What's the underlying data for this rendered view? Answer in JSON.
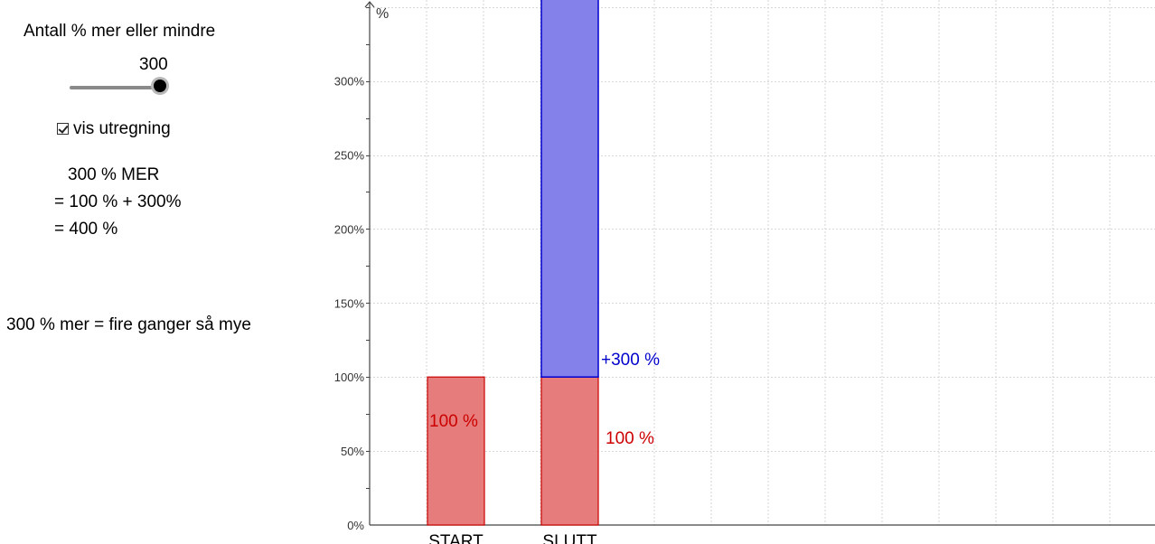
{
  "panel": {
    "slider_title": "Antall % mer eller mindre",
    "slider_value": "300",
    "slider_level": 1.0,
    "checkbox_label": "vis utregning",
    "checkbox_checked": true,
    "calc_line1": "300 % MER",
    "calc_line2": "= 100 % + 300%",
    "calc_line3": "= 400 %",
    "summary": "300 % mer = fire ganger så mye"
  },
  "chart_data": {
    "type": "bar",
    "ylabel": "%",
    "ylim": [
      0,
      350
    ],
    "yticks": [
      0,
      50,
      100,
      150,
      200,
      250,
      300
    ],
    "ytick_labels": [
      "0%",
      "50%",
      "100%",
      "150%",
      "200%",
      "250%",
      "300%"
    ],
    "grid": true,
    "categories": [
      "START",
      "SLUTT"
    ],
    "series": [
      {
        "color": "#e67c7c",
        "stroke": "#cc0000",
        "values": [
          100,
          100
        ]
      },
      {
        "color": "#8482ea",
        "stroke": "#0000cc",
        "values": [
          0,
          300
        ]
      }
    ],
    "annotations": {
      "start_base": "100 %",
      "slutt_base": "100 %",
      "slutt_added": "+300 %"
    },
    "colors": {
      "red_text": "#cc0000",
      "blue_text": "#0000cc"
    }
  }
}
